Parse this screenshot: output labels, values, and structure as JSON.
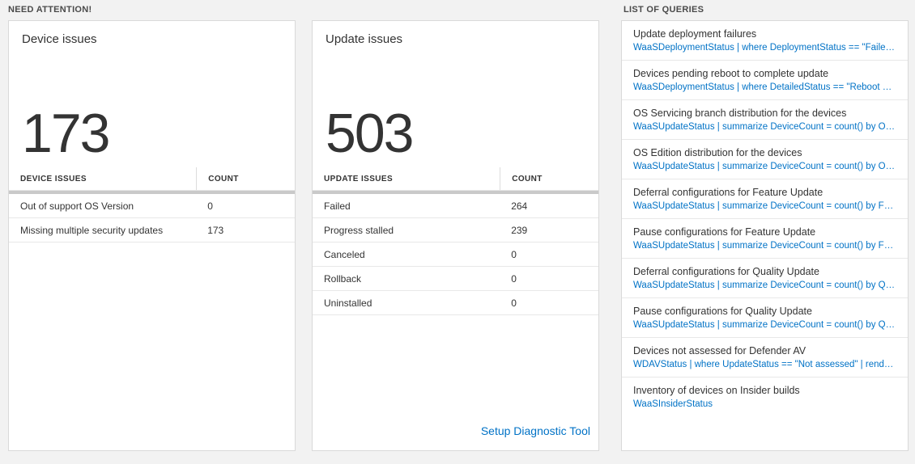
{
  "page": {
    "bg_color": "#f2f2f2",
    "accent_blue": "#0072c6"
  },
  "sections": {
    "need_attention": {
      "title": "NEED ATTENTION!"
    },
    "queries": {
      "title": "LIST OF QUERIES"
    }
  },
  "device_card": {
    "title": "Device issues",
    "total": "173",
    "table": {
      "headers": [
        "DEVICE ISSUES",
        "COUNT"
      ],
      "rows": [
        {
          "label": "Out of support OS Version",
          "count": "0"
        },
        {
          "label": "Missing multiple security updates",
          "count": "173"
        }
      ]
    }
  },
  "update_card": {
    "title": "Update issues",
    "total": "503",
    "table": {
      "headers": [
        "UPDATE ISSUES",
        "COUNT"
      ],
      "rows": [
        {
          "label": "Failed",
          "count": "264"
        },
        {
          "label": "Progress stalled",
          "count": "239"
        },
        {
          "label": "Canceled",
          "count": "0"
        },
        {
          "label": "Rollback",
          "count": "0"
        },
        {
          "label": "Uninstalled",
          "count": "0"
        }
      ]
    },
    "footer_link": "Setup Diagnostic Tool"
  },
  "queries_card": {
    "items": [
      {
        "title": "Update deployment failures",
        "query": "WaaSDeploymentStatus | where DeploymentStatus == \"Failed\" |…"
      },
      {
        "title": "Devices pending reboot to complete update",
        "query": "WaaSDeploymentStatus | where DetailedStatus == \"Reboot pend…"
      },
      {
        "title": "OS Servicing branch distribution for the devices",
        "query": "WaaSUpdateStatus | summarize DeviceCount = count() by OSSer…"
      },
      {
        "title": "OS Edition distribution for the devices",
        "query": "WaaSUpdateStatus | summarize DeviceCount = count() by OSEdit…"
      },
      {
        "title": "Deferral configurations for Feature Update",
        "query": "WaaSUpdateStatus | summarize DeviceCount = count() by Featur…"
      },
      {
        "title": "Pause configurations for Feature Update",
        "query": "WaaSUpdateStatus | summarize DeviceCount = count() by Featur…"
      },
      {
        "title": "Deferral configurations for Quality Update",
        "query": "WaaSUpdateStatus | summarize DeviceCount = count() by Qualit…"
      },
      {
        "title": "Pause configurations for Quality Update",
        "query": "WaaSUpdateStatus | summarize DeviceCount = count() by Qualit…"
      },
      {
        "title": "Devices not assessed for Defender AV",
        "query": "WDAVStatus | where UpdateStatus == \"Not assessed\" | render ta…"
      },
      {
        "title": "Inventory of devices on Insider builds",
        "query": "WaaSInsiderStatus"
      }
    ]
  }
}
